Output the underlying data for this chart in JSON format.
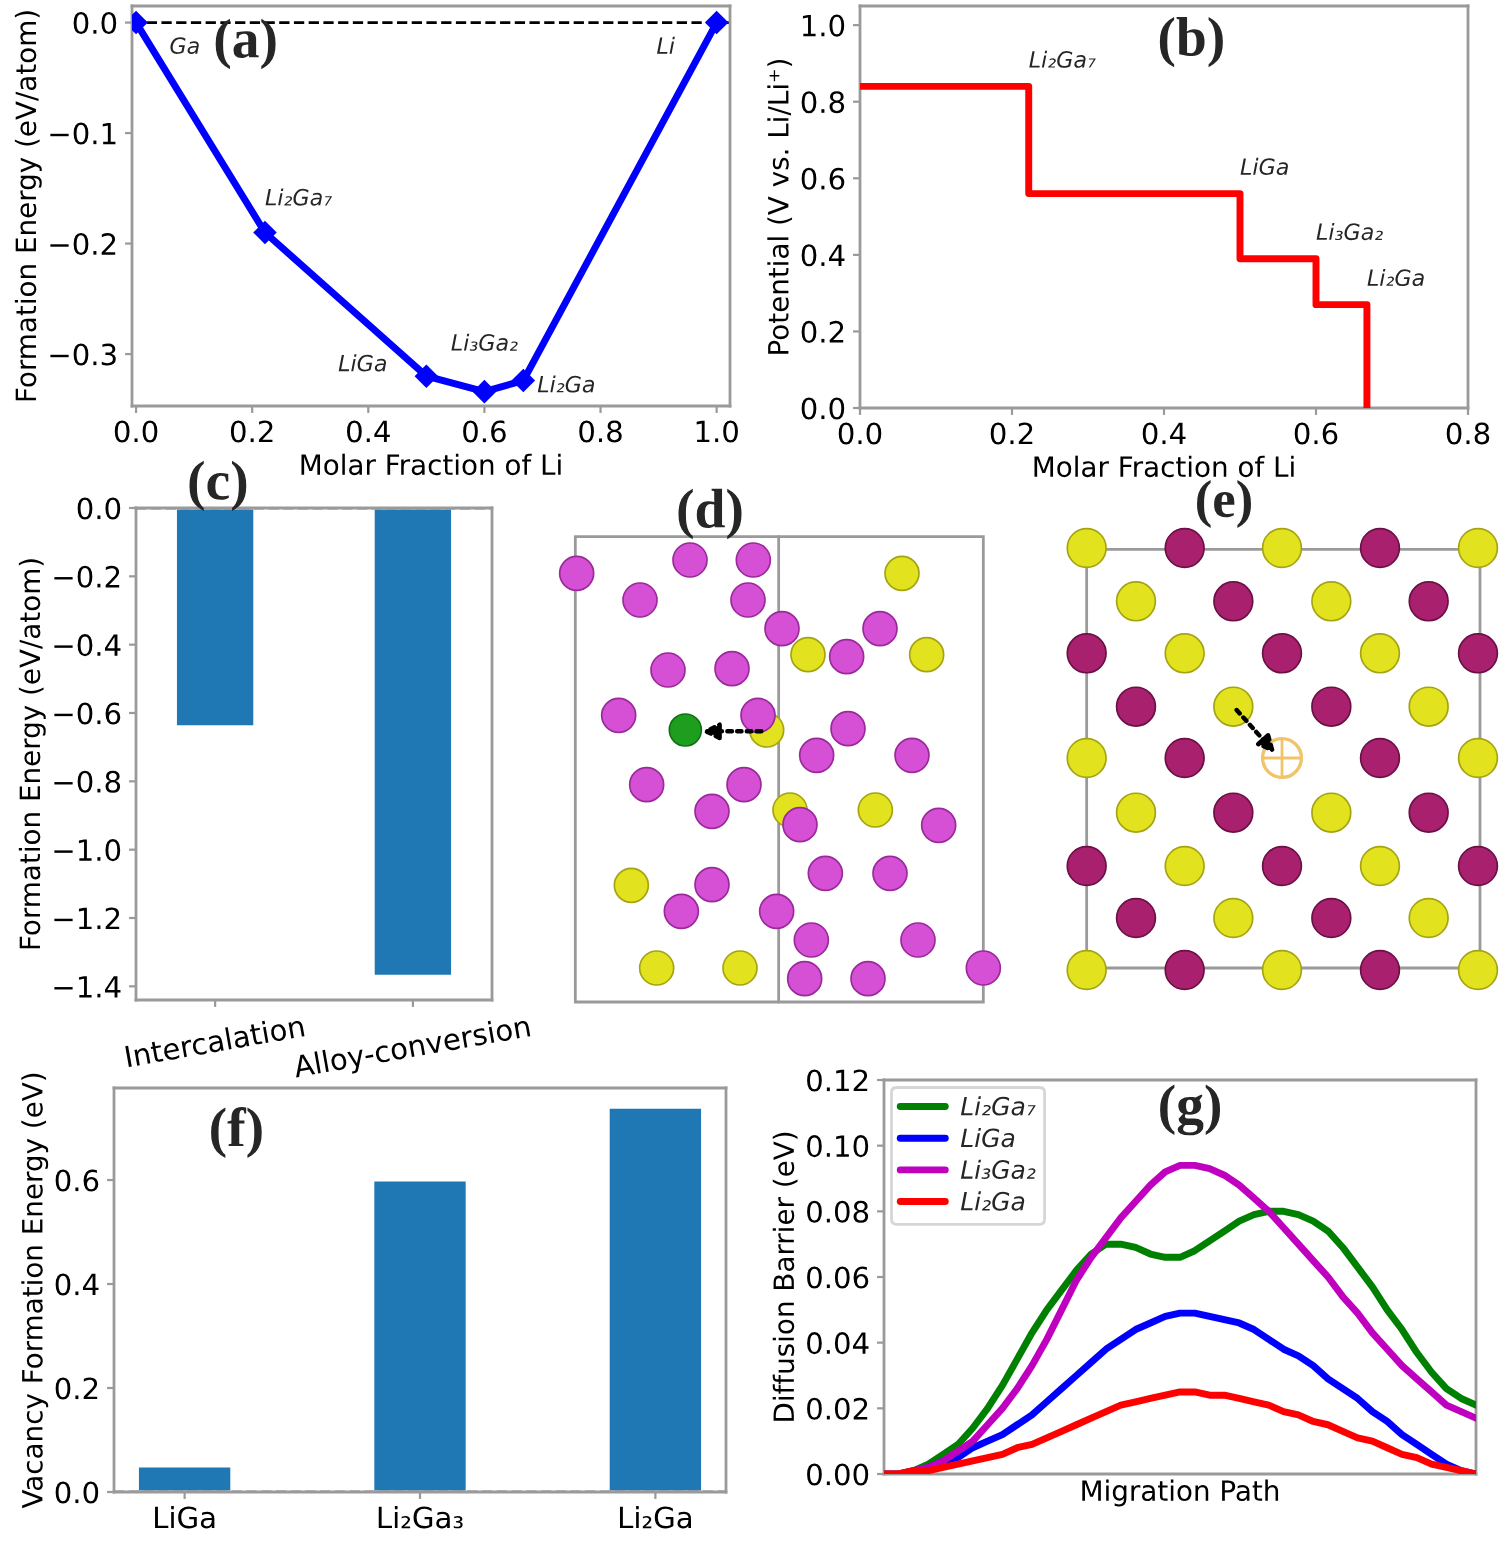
{
  "chart_data": [
    {
      "type": "line",
      "title": "(a)",
      "xlabel": "Molar Fraction of Li",
      "ylabel": "Formation Energy (eV/atom)",
      "x": [
        0,
        0.222,
        0.5,
        0.6,
        0.667,
        1
      ],
      "series": [
        {
          "color": "#0000ff",
          "values": [
            0,
            -0.19,
            -0.32,
            -0.334,
            -0.324,
            0
          ]
        }
      ],
      "marker": "diamond",
      "xlim": [
        -0.007,
        1.023
      ],
      "xticks": [
        {
          "value": 0,
          "label": "0.0"
        },
        {
          "value": 0.2,
          "label": "0.2"
        },
        {
          "value": 0.4,
          "label": "0.4"
        },
        {
          "value": 0.6,
          "label": "0.6"
        },
        {
          "value": 0.8,
          "label": "0.8"
        },
        {
          "value": 1,
          "label": "1.0"
        }
      ],
      "ylim": [
        -0.347,
        0.015
      ],
      "yticks": [
        {
          "value": -0.3,
          "label": "−0.3"
        },
        {
          "value": -0.2,
          "label": "−0.2"
        },
        {
          "value": -0.1,
          "label": "−0.1"
        },
        {
          "value": 0,
          "label": "0.0"
        }
      ],
      "ref_lines": [
        {
          "axis": "y",
          "value": 0,
          "color": "#000000",
          "line_style": "dashed"
        }
      ],
      "annotations": [
        {
          "text": "Ga",
          "x": 0,
          "y": 0
        },
        {
          "text": "Li₂Ga₇",
          "x": 0.222,
          "y": -0.19
        },
        {
          "text": "LiGa",
          "x": 0.5,
          "y": -0.32
        },
        {
          "text": "Li₃Ga₂",
          "x": 0.6,
          "y": -0.334
        },
        {
          "text": "Li₂Ga",
          "x": 0.667,
          "y": -0.324
        },
        {
          "text": "Li",
          "x": 1,
          "y": 0
        }
      ]
    },
    {
      "type": "step",
      "title": "(b)",
      "xlabel": "Molar Fraction of Li",
      "ylabel": "Potential (V vs. Li/Li⁺)",
      "x": [
        0,
        0.222,
        0.5,
        0.6,
        0.667
      ],
      "series": [
        {
          "color": "#ff0000",
          "values": [
            0.84,
            0.56,
            0.39,
            0.27,
            0
          ]
        }
      ],
      "xlim": [
        0,
        0.8
      ],
      "xticks": [
        {
          "value": 0,
          "label": "0.0"
        },
        {
          "value": 0.2,
          "label": "0.2"
        },
        {
          "value": 0.4,
          "label": "0.4"
        },
        {
          "value": 0.6,
          "label": "0.6"
        },
        {
          "value": 0.8,
          "label": "0.8"
        }
      ],
      "ylim": [
        0,
        1.05
      ],
      "yticks": [
        {
          "value": 0,
          "label": "0.0"
        },
        {
          "value": 0.2,
          "label": "0.2"
        },
        {
          "value": 0.4,
          "label": "0.4"
        },
        {
          "value": 0.6,
          "label": "0.6"
        },
        {
          "value": 0.8,
          "label": "0.8"
        },
        {
          "value": 1,
          "label": "1.0"
        }
      ],
      "annotations": [
        {
          "text": "Li₂Ga₇",
          "x": 0.222,
          "y": 0.84
        },
        {
          "text": "LiGa",
          "x": 0.5,
          "y": 0.56
        },
        {
          "text": "Li₃Ga₂",
          "x": 0.6,
          "y": 0.39
        },
        {
          "text": "Li₂Ga",
          "x": 0.667,
          "y": 0.27
        }
      ]
    },
    {
      "type": "bar",
      "title": "(c)",
      "ylabel": "Formation Energy (eV/atom)",
      "categories": [
        "Intercalation",
        "Alloy-conversion"
      ],
      "series": [
        {
          "color": "#1f77b4",
          "values": [
            -0.64,
            -1.37
          ]
        }
      ],
      "ylim": [
        -1.44,
        0
      ],
      "yticks": [
        {
          "value": 0,
          "label": "0.0"
        },
        {
          "value": -0.2,
          "label": "−0.2"
        },
        {
          "value": -0.4,
          "label": "−0.4"
        },
        {
          "value": -0.6,
          "label": "−0.6"
        },
        {
          "value": -0.8,
          "label": "−0.8"
        },
        {
          "value": -1.0,
          "label": "−1.0"
        },
        {
          "value": -1.2,
          "label": "−1.2"
        },
        {
          "value": -1.4,
          "label": "−1.4"
        }
      ],
      "ref_lines": [
        {
          "axis": "y",
          "value": 0,
          "color": "#808080",
          "line_style": "dashed"
        }
      ]
    },
    {
      "type": "other",
      "title": "(d)"
    },
    {
      "type": "other",
      "title": "(e)"
    },
    {
      "type": "bar",
      "title": "(f)",
      "ylabel": "Vacancy Formation Energy (eV)",
      "categories": [
        "LiGa",
        "Li₂Ga₃",
        "Li₂Ga"
      ],
      "series": [
        {
          "color": "#1f77b4",
          "values": [
            0.05,
            0.6,
            0.74
          ]
        }
      ],
      "ylim": [
        0,
        0.777
      ],
      "yticks": [
        {
          "value": 0,
          "label": "0.0"
        },
        {
          "value": 0.2,
          "label": "0.2"
        },
        {
          "value": 0.4,
          "label": "0.4"
        },
        {
          "value": 0.6,
          "label": "0.6"
        }
      ],
      "ref_lines": [
        {
          "axis": "y",
          "value": 0,
          "color": "#808080",
          "line_style": "dashed"
        }
      ]
    },
    {
      "type": "line",
      "title": "(g)",
      "xlabel": "Migration Path",
      "ylabel": "Diffusion Barrier (eV)",
      "categories": [
        null,
        null,
        null,
        null,
        null,
        null,
        null,
        null,
        null,
        null,
        null,
        null,
        null,
        null,
        null,
        null,
        null,
        null,
        null,
        null,
        null,
        null,
        null,
        null,
        null,
        null,
        null,
        null,
        null,
        null,
        null,
        null,
        null,
        null,
        null,
        null,
        null,
        null,
        null,
        null,
        null
      ],
      "series": [
        {
          "name": "Li₂Ga₇",
          "color": "#008000",
          "values": [
            0,
            0,
            0.001,
            0.003,
            0.006,
            0.009,
            0.014,
            0.02,
            0.027,
            0.035,
            0.043,
            0.05,
            0.056,
            0.062,
            0.067,
            0.07,
            0.07,
            0.069,
            0.067,
            0.066,
            0.066,
            0.068,
            0.071,
            0.074,
            0.077,
            0.079,
            0.08,
            0.08,
            0.079,
            0.077,
            0.074,
            0.069,
            0.063,
            0.057,
            0.05,
            0.044,
            0.037,
            0.031,
            0.026,
            0.023,
            0.021
          ]
        },
        {
          "name": "LiGa",
          "color": "#0000ff",
          "values": [
            null,
            null,
            null,
            0.002,
            0.004,
            0.005,
            0.008,
            0.01,
            0.012,
            0.015,
            0.018,
            0.022,
            0.026,
            0.03,
            0.034,
            0.038,
            0.041,
            0.044,
            0.046,
            0.048,
            0.049,
            0.049,
            0.048,
            0.047,
            0.046,
            0.044,
            0.041,
            0.038,
            0.036,
            0.033,
            0.029,
            0.026,
            0.023,
            0.019,
            0.016,
            0.012,
            0.009,
            0.006,
            0.003,
            0.001,
            0
          ]
        },
        {
          "name": "Li₃Ga₂",
          "color": "#bf00bf",
          "values": [
            0,
            0,
            0.001,
            0.002,
            0.004,
            0.007,
            0.01,
            0.015,
            0.02,
            0.026,
            0.033,
            0.041,
            0.05,
            0.059,
            0.066,
            0.072,
            0.078,
            0.083,
            0.088,
            0.092,
            0.094,
            0.094,
            0.093,
            0.091,
            0.088,
            0.084,
            0.08,
            0.075,
            0.07,
            0.065,
            0.06,
            0.054,
            0.049,
            0.043,
            0.038,
            0.033,
            0.029,
            0.025,
            0.021,
            0.019,
            0.017
          ]
        },
        {
          "name": "Li₂Ga",
          "color": "#ff0000",
          "values": [
            0,
            0,
            0.001,
            0.001,
            0.002,
            0.003,
            0.004,
            0.005,
            0.006,
            0.008,
            0.009,
            0.011,
            0.013,
            0.015,
            0.017,
            0.019,
            0.021,
            0.022,
            0.023,
            0.024,
            0.025,
            0.025,
            0.024,
            0.024,
            0.023,
            0.022,
            0.021,
            0.019,
            0.018,
            0.016,
            0.015,
            0.013,
            0.011,
            0.01,
            0.008,
            0.006,
            0.005,
            0.003,
            0.002,
            0.001,
            0
          ]
        }
      ],
      "ylim": [
        0,
        0.12
      ],
      "yticks": [
        {
          "value": 0,
          "label": "0.00"
        },
        {
          "value": 0.02,
          "label": "0.02"
        },
        {
          "value": 0.04,
          "label": "0.04"
        },
        {
          "value": 0.06,
          "label": "0.06"
        },
        {
          "value": 0.08,
          "label": "0.08"
        },
        {
          "value": 0.1,
          "label": "0.10"
        },
        {
          "value": 0.12,
          "label": "0.12"
        }
      ],
      "legend": "top left"
    }
  ]
}
